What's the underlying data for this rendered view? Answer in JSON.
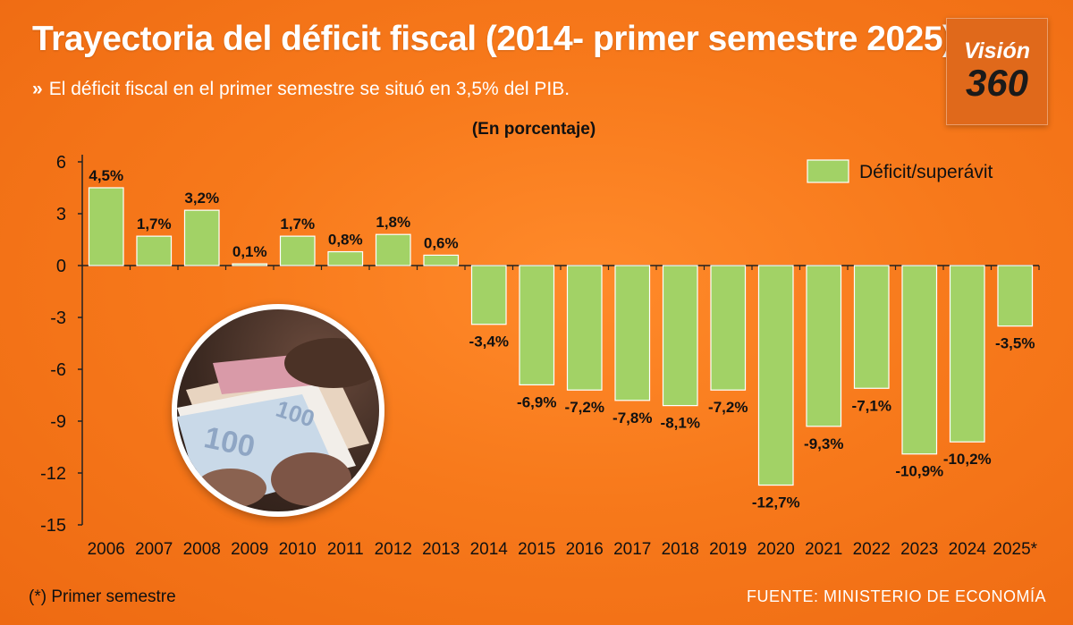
{
  "header": {
    "title": "Trayectoria del déficit fiscal (2014- primer semestre 2025)",
    "subtitle": "El déficit fiscal en el primer semestre se situó en 3,5% del PIB."
  },
  "logo": {
    "line1": "Visión",
    "line2": "360"
  },
  "photo": {
    "bill_text": "100"
  },
  "footer": {
    "footnote": "(*) Primer semestre",
    "source": "FUENTE: MINISTERIO DE ECONOMÍA"
  },
  "colors": {
    "bar": "#a2d266",
    "bar_stroke": "#ffffff",
    "axis": "#222222",
    "text_dark": "#111111"
  },
  "chart_data": {
    "type": "bar",
    "unit_label": "(En porcentaje)",
    "legend": "Déficit/superávit",
    "categories": [
      "2006",
      "2007",
      "2008",
      "2009",
      "2010",
      "2011",
      "2012",
      "2013",
      "2014",
      "2015",
      "2016",
      "2017",
      "2018",
      "2019",
      "2020",
      "2021",
      "2022",
      "2023",
      "2024",
      "2025*"
    ],
    "values": [
      4.5,
      1.7,
      3.2,
      0.1,
      1.7,
      0.8,
      1.8,
      0.6,
      -3.4,
      -6.9,
      -7.2,
      -7.8,
      -8.1,
      -7.2,
      -12.7,
      -9.3,
      -7.1,
      -10.9,
      -10.2,
      -3.5
    ],
    "labels": [
      "4,5%",
      "1,7%",
      "3,2%",
      "0,1%",
      "1,7%",
      "0,8%",
      "1,8%",
      "0,6%",
      "-3,4%",
      "-6,9%",
      "-7,2%",
      "-7,8%",
      "-8,1%",
      "-7,2%",
      "-12,7%",
      "-9,3%",
      "-7,1%",
      "-10,9%",
      "-10,2%",
      "-3,5%"
    ],
    "yticks": [
      6,
      3,
      0,
      -3,
      -6,
      -9,
      -12,
      -15
    ],
    "ylim": [
      -15,
      6
    ]
  }
}
